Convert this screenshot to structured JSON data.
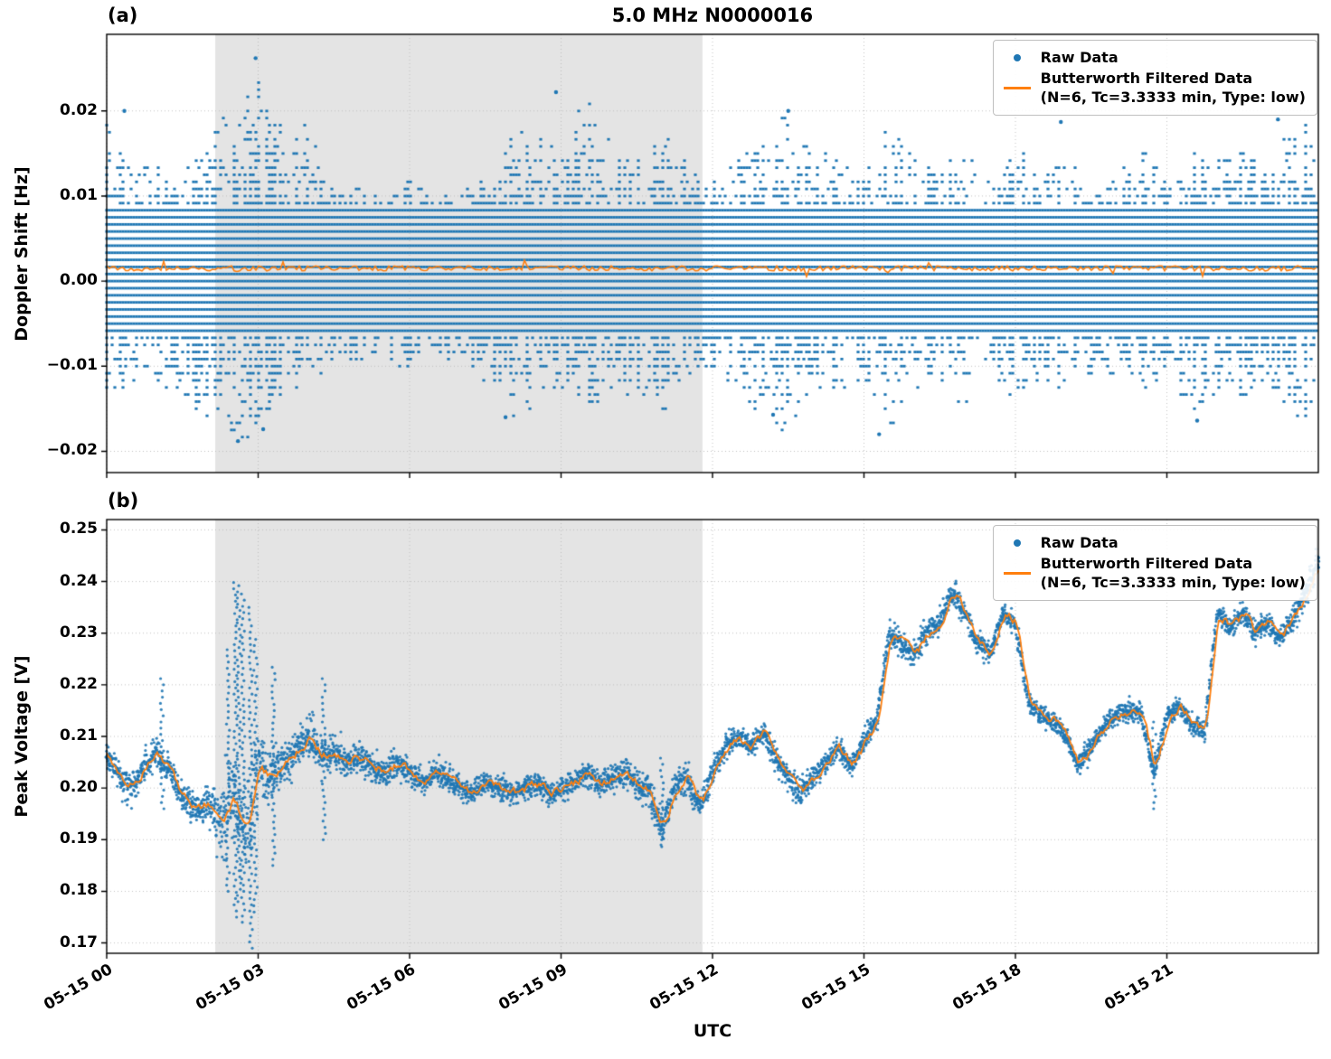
{
  "figure": {
    "title": "5.0 MHz N0000016",
    "xlabel": "UTC",
    "panel_a_label": "(a)",
    "panel_b_label": "(b)"
  },
  "colors": {
    "raw": "#1f77b4",
    "filtered": "#ff7f0e",
    "shade": "#e4e4e4",
    "grid": "#c0c0c0",
    "spine": "#000000"
  },
  "chart_data": [
    {
      "type": "scatter",
      "panel": "a",
      "title": "5.0 MHz N0000016",
      "ylabel": "Doppler Shift [Hz]",
      "ylim": [
        -0.0225,
        0.029
      ],
      "ytick_values": [
        -0.02,
        -0.01,
        0.0,
        0.01,
        0.02
      ],
      "yticks": [
        "−0.02",
        "−0.01",
        "0.00",
        "0.01",
        "0.02"
      ],
      "xtick_hours": [
        0,
        3,
        6,
        9,
        12,
        15,
        18,
        21
      ],
      "xtick_labels": [
        "05-15 00",
        "05-15 03",
        "05-15 06",
        "05-15 09",
        "05-15 12",
        "05-15 15",
        "05-15 18",
        "05-15 21"
      ],
      "x_range_hours": [
        0,
        24
      ],
      "shaded_region_hours": [
        2.15,
        11.8
      ],
      "grid": "dotted",
      "legend": {
        "location": "upper right",
        "raw_label": "Raw Data",
        "filtered_label_line1": "Butterworth Filtered Data",
        "filtered_label_line2": "(N=6, Tc=3.3333 min, Type: low)"
      },
      "series": [
        {
          "name": "Raw Data",
          "type": "scatter",
          "color": "#1f77b4",
          "quantization_step_hz": 0.000833,
          "dense_band_hz": [
            -0.0062,
            0.0086
          ],
          "envelope_pos_mhz": [
            20,
            15,
            14,
            12,
            18,
            20,
            26,
            19,
            19,
            12,
            11,
            10,
            13,
            11,
            10,
            13,
            19,
            18,
            16,
            22,
            17,
            15,
            18,
            14,
            12,
            17,
            18,
            20,
            15,
            16,
            14,
            20,
            15,
            14,
            17,
            12,
            16,
            14,
            15,
            12,
            13,
            16,
            14,
            17,
            15,
            16,
            14,
            19,
            19
          ],
          "envelope_neg_mhz": [
            15,
            13,
            12,
            14,
            16,
            19,
            18,
            15,
            13,
            10,
            10,
            9,
            12,
            10,
            9,
            12,
            16,
            15,
            14,
            16,
            15,
            13,
            16,
            12,
            11,
            14,
            16,
            18,
            13,
            14,
            12,
            18,
            13,
            12,
            15,
            11,
            14,
            12,
            13,
            11,
            12,
            14,
            12,
            16,
            13,
            14,
            12,
            17,
            16
          ],
          "outliers": [
            [
              0.35,
              0.02
            ],
            [
              2.95,
              0.0262
            ],
            [
              8.9,
              0.0222
            ],
            [
              13.5,
              0.02
            ],
            [
              18.9,
              0.0187
            ],
            [
              23.2,
              0.019
            ],
            [
              2.6,
              -0.0188
            ],
            [
              3.1,
              -0.0174
            ],
            [
              7.9,
              -0.016
            ],
            [
              13.2,
              -0.0157
            ],
            [
              15.3,
              -0.018
            ],
            [
              21.6,
              -0.0164
            ]
          ]
        },
        {
          "name": "Butterworth Filtered Data (N=6, Tc=3.3333 min, Type: low)",
          "type": "line",
          "color": "#ff7f0e",
          "mean_hz": 0.0015,
          "wiggle_hz": 0.0006
        }
      ]
    },
    {
      "type": "scatter",
      "panel": "b",
      "ylabel": "Peak Voltage [V]",
      "ylim": [
        0.168,
        0.252
      ],
      "ytick_values": [
        0.17,
        0.18,
        0.19,
        0.2,
        0.21,
        0.22,
        0.23,
        0.24,
        0.25
      ],
      "yticks": [
        "0.17",
        "0.18",
        "0.19",
        "0.20",
        "0.21",
        "0.22",
        "0.23",
        "0.24",
        "0.25"
      ],
      "xtick_hours": [
        0,
        3,
        6,
        9,
        12,
        15,
        18,
        21
      ],
      "xtick_labels": [
        "05-15 00",
        "05-15 03",
        "05-15 06",
        "05-15 09",
        "05-15 12",
        "05-15 15",
        "05-15 18",
        "05-15 21"
      ],
      "x_range_hours": [
        0,
        24
      ],
      "shaded_region_hours": [
        2.15,
        11.8
      ],
      "grid": "dotted",
      "legend": {
        "location": "upper right",
        "raw_label": "Raw Data",
        "filtered_label_line1": "Butterworth Filtered Data",
        "filtered_label_line2": "(N=6, Tc=3.3333 min, Type: low)"
      },
      "series": [
        {
          "name": "Raw Data",
          "type": "scatter",
          "color": "#1f77b4",
          "profile_hours_step": 0.25,
          "profile_v": [
            0.207,
            0.202,
            0.2,
            0.204,
            0.207,
            0.203,
            0.198,
            0.196,
            0.197,
            0.193,
            0.198,
            0.191,
            0.204,
            0.202,
            0.205,
            0.207,
            0.21,
            0.206,
            0.207,
            0.205,
            0.206,
            0.204,
            0.203,
            0.205,
            0.203,
            0.201,
            0.203,
            0.202,
            0.2,
            0.199,
            0.201,
            0.2,
            0.199,
            0.2,
            0.201,
            0.199,
            0.2,
            0.201,
            0.203,
            0.201,
            0.202,
            0.203,
            0.201,
            0.199,
            0.192,
            0.2,
            0.202,
            0.196,
            0.203,
            0.208,
            0.21,
            0.208,
            0.211,
            0.206,
            0.202,
            0.199,
            0.202,
            0.205,
            0.208,
            0.204,
            0.209,
            0.213,
            0.23,
            0.228,
            0.226,
            0.23,
            0.232,
            0.238,
            0.234,
            0.228,
            0.226,
            0.234,
            0.232,
            0.217,
            0.214,
            0.213,
            0.21,
            0.204,
            0.208,
            0.212,
            0.214,
            0.215,
            0.214,
            0.203,
            0.214,
            0.216,
            0.212,
            0.211,
            0.234,
            0.231,
            0.234,
            0.23,
            0.232,
            0.229,
            0.233,
            0.238,
            0.244
          ],
          "noise_amp_v": [
            0.005,
            0.005,
            0.005,
            0.005,
            0.006,
            0.016,
            0.014,
            0.007,
            0.007,
            0.006,
            0.005,
            0.005,
            0.0045,
            0.0045,
            0.004,
            0.004,
            0.004,
            0.004,
            0.004,
            0.004,
            0.0045,
            0.0045,
            0.006,
            0.005,
            0.004,
            0.004,
            0.004,
            0.0045,
            0.004,
            0.004,
            0.004,
            0.004,
            0.004,
            0.0045,
            0.004,
            0.004,
            0.004,
            0.0035,
            0.0035,
            0.0035,
            0.0035,
            0.0035,
            0.0035,
            0.0035,
            0.0035,
            0.0035,
            0.0035,
            0.004,
            0.005
          ],
          "spikes": [
            [
              1.1,
              0.196,
              0.222
            ],
            [
              2.4,
              0.18,
              0.228
            ],
            [
              2.55,
              0.175,
              0.241
            ],
            [
              2.62,
              0.178,
              0.24
            ],
            [
              2.7,
              0.174,
              0.238
            ],
            [
              2.85,
              0.169,
              0.236
            ],
            [
              2.95,
              0.176,
              0.23
            ],
            [
              3.3,
              0.185,
              0.224
            ],
            [
              4.3,
              0.19,
              0.222
            ],
            [
              11.0,
              0.189,
              0.207
            ],
            [
              20.75,
              0.196,
              0.214
            ]
          ]
        },
        {
          "name": "Butterworth Filtered Data (N=6, Tc=3.3333 min, Type: low)",
          "type": "line",
          "color": "#ff7f0e",
          "follows": "profile_v"
        }
      ]
    }
  ]
}
